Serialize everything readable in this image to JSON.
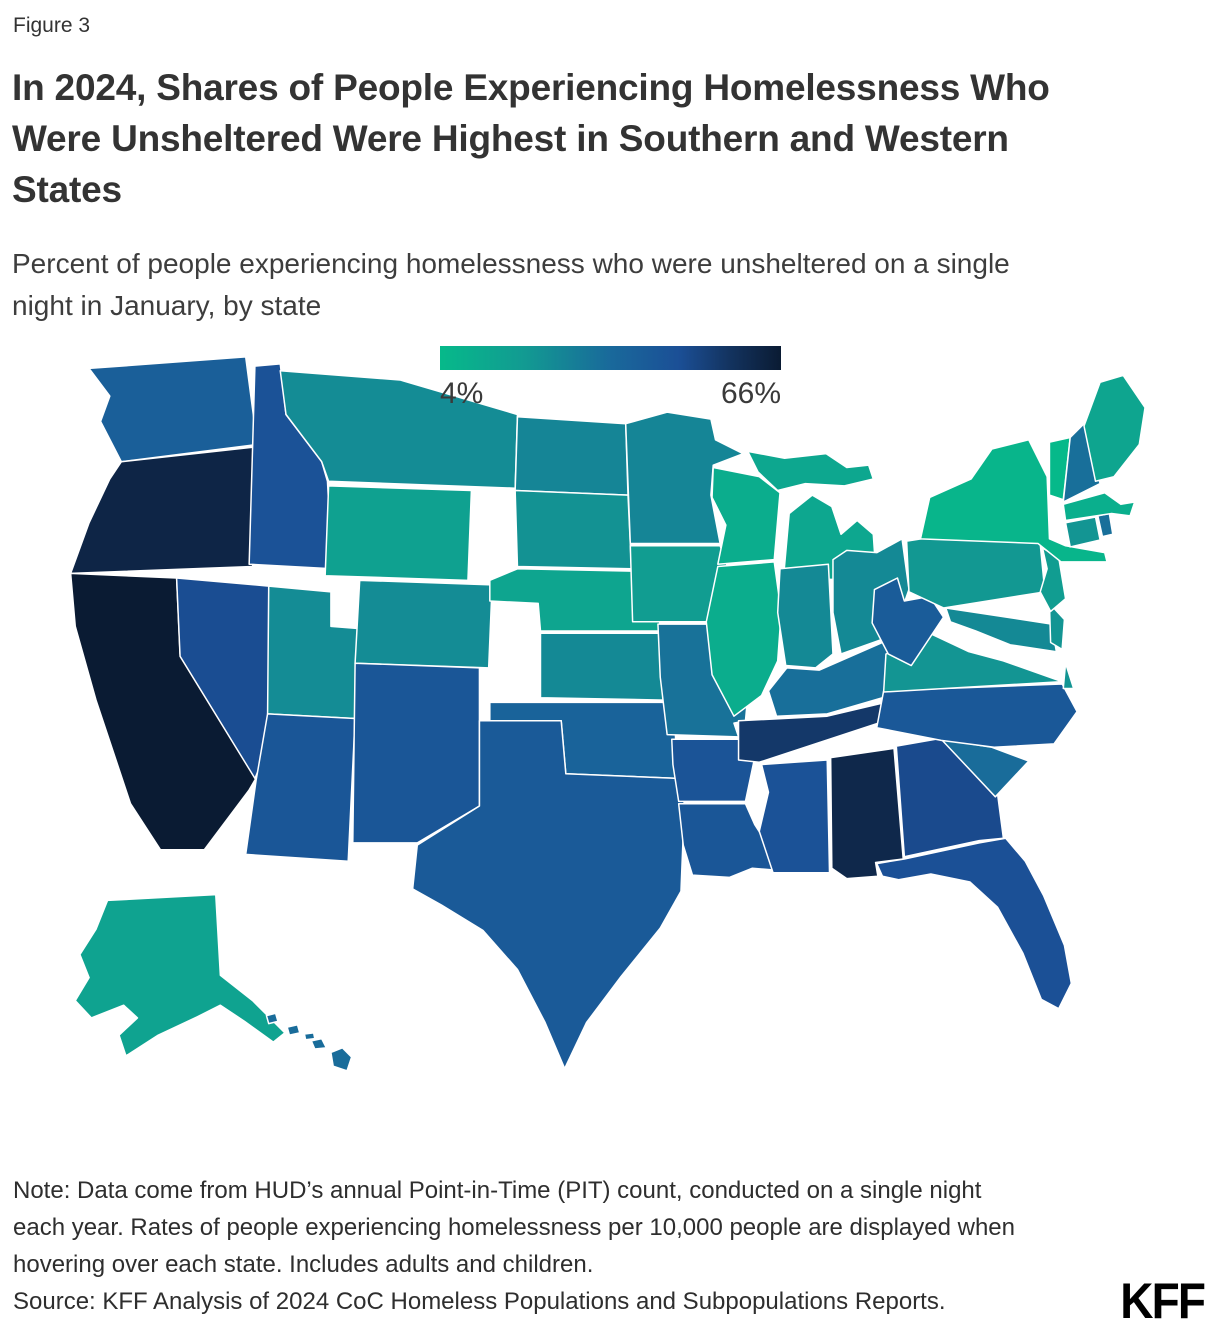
{
  "figure_label": "Figure 3",
  "title_lines": [
    "In 2024, Shares of People Experiencing Homelessness Who",
    "Were Unsheltered Were Highest in Southern and Western",
    "States"
  ],
  "subtitle_lines": [
    "Percent of people experiencing homelessness who were unsheltered on a single",
    "night in January, by state"
  ],
  "legend": {
    "min_label": "4%",
    "max_label": "66%",
    "gradient_stops": [
      {
        "t": 0.0,
        "color": "#06b98a"
      },
      {
        "t": 0.25,
        "color": "#129a92"
      },
      {
        "t": 0.5,
        "color": "#19699b"
      },
      {
        "t": 0.7,
        "color": "#1b4f96"
      },
      {
        "t": 0.85,
        "color": "#13335f"
      },
      {
        "t": 1.0,
        "color": "#0a1b33"
      }
    ]
  },
  "chart_data": {
    "type": "choropleth_map",
    "title": "Percent of people experiencing homelessness who were unsheltered on a single night in January, by state",
    "unit": "percent unsheltered",
    "min": 4,
    "max": 66,
    "states": [
      {
        "abbr": "WA",
        "name": "Washington",
        "value": 40
      },
      {
        "abbr": "OR",
        "name": "Oregon",
        "value": 62
      },
      {
        "abbr": "CA",
        "name": "California",
        "value": 66
      },
      {
        "abbr": "NV",
        "name": "Nevada",
        "value": 48
      },
      {
        "abbr": "ID",
        "name": "Idaho",
        "value": 46
      },
      {
        "abbr": "MT",
        "name": "Montana",
        "value": 24
      },
      {
        "abbr": "WY",
        "name": "Wyoming",
        "value": 16
      },
      {
        "abbr": "UT",
        "name": "Utah",
        "value": 24
      },
      {
        "abbr": "CO",
        "name": "Colorado",
        "value": 24
      },
      {
        "abbr": "AZ",
        "name": "Arizona",
        "value": 44
      },
      {
        "abbr": "NM",
        "name": "New Mexico",
        "value": 44
      },
      {
        "abbr": "ND",
        "name": "North Dakota",
        "value": 26
      },
      {
        "abbr": "SD",
        "name": "South Dakota",
        "value": 22
      },
      {
        "abbr": "NE",
        "name": "Nebraska",
        "value": 14
      },
      {
        "abbr": "KS",
        "name": "Kansas",
        "value": 25
      },
      {
        "abbr": "OK",
        "name": "Oklahoma",
        "value": 38
      },
      {
        "abbr": "TX",
        "name": "Texas",
        "value": 42
      },
      {
        "abbr": "MN",
        "name": "Minnesota",
        "value": 26
      },
      {
        "abbr": "IA",
        "name": "Iowa",
        "value": 18
      },
      {
        "abbr": "MO",
        "name": "Missouri",
        "value": 32
      },
      {
        "abbr": "AR",
        "name": "Arkansas",
        "value": 45
      },
      {
        "abbr": "LA",
        "name": "Louisiana",
        "value": 44
      },
      {
        "abbr": "WI",
        "name": "Wisconsin",
        "value": 10
      },
      {
        "abbr": "IL",
        "name": "Illinois",
        "value": 10
      },
      {
        "abbr": "MI",
        "name": "Michigan",
        "value": 13
      },
      {
        "abbr": "IN",
        "name": "Indiana",
        "value": 25
      },
      {
        "abbr": "OH",
        "name": "Ohio",
        "value": 25
      },
      {
        "abbr": "KY",
        "name": "Kentucky",
        "value": 33
      },
      {
        "abbr": "TN",
        "name": "Tennessee",
        "value": 55
      },
      {
        "abbr": "MS",
        "name": "Mississippi",
        "value": 46
      },
      {
        "abbr": "AL",
        "name": "Alabama",
        "value": 61
      },
      {
        "abbr": "GA",
        "name": "Georgia",
        "value": 49
      },
      {
        "abbr": "FL",
        "name": "Florida",
        "value": 47
      },
      {
        "abbr": "SC",
        "name": "South Carolina",
        "value": 34
      },
      {
        "abbr": "NC",
        "name": "North Carolina",
        "value": 43
      },
      {
        "abbr": "VA",
        "name": "Virginia",
        "value": 21
      },
      {
        "abbr": "WV",
        "name": "West Virginia",
        "value": 41
      },
      {
        "abbr": "MD",
        "name": "Maryland",
        "value": 25
      },
      {
        "abbr": "DE",
        "name": "Delaware",
        "value": 21
      },
      {
        "abbr": "PA",
        "name": "Pennsylvania",
        "value": 20
      },
      {
        "abbr": "NJ",
        "name": "New Jersey",
        "value": 18
      },
      {
        "abbr": "NY",
        "name": "New York",
        "value": 6
      },
      {
        "abbr": "CT",
        "name": "Connecticut",
        "value": 21
      },
      {
        "abbr": "RI",
        "name": "Rhode Island",
        "value": 33
      },
      {
        "abbr": "MA",
        "name": "Massachusetts",
        "value": 9
      },
      {
        "abbr": "VT",
        "name": "Vermont",
        "value": 4
      },
      {
        "abbr": "NH",
        "name": "New Hampshire",
        "value": 33
      },
      {
        "abbr": "ME",
        "name": "Maine",
        "value": 14
      },
      {
        "abbr": "AK",
        "name": "Alaska",
        "value": 15
      },
      {
        "abbr": "HI",
        "name": "Hawaii",
        "value": 34
      }
    ]
  },
  "note_lines": [
    "Note: Data come from HUD’s annual Point-in-Time (PIT) count, conducted on a single night",
    "each year. Rates of people experiencing homelessness per 10,000 people are displayed when",
    "hovering over each state. Includes adults and children."
  ],
  "source": "Source: KFF Analysis of 2024 CoC Homeless Populations and Subpopulations Reports.",
  "logo": "KFF"
}
